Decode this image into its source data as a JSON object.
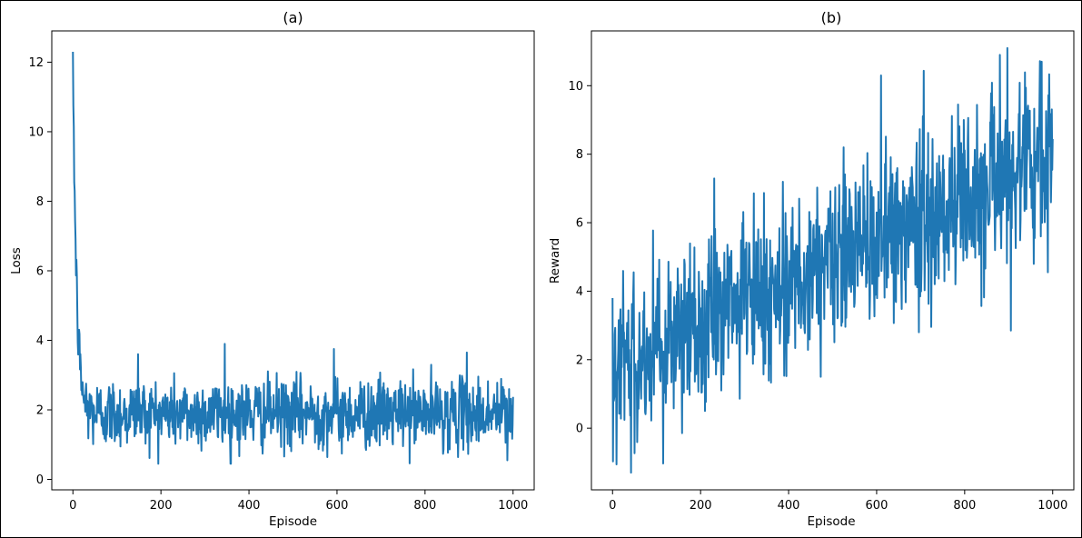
{
  "chart_data": [
    {
      "type": "line",
      "title": "(a)",
      "xlabel": "Episode",
      "ylabel": "Loss",
      "xlim": [
        -48,
        1048
      ],
      "ylim": [
        -0.3,
        12.9
      ],
      "xticks": [
        0,
        200,
        400,
        600,
        800,
        1000
      ],
      "yticks": [
        0,
        2,
        4,
        6,
        8,
        10,
        12
      ],
      "color": "#1f77b4",
      "series": [
        {
          "x_start": 0,
          "x_step": 1,
          "y_model": "1.9 + 10.4*exp(-x/8) + noise(0.5)",
          "x": [
            0,
            1,
            2,
            3,
            4,
            5,
            6,
            8,
            10,
            12,
            15,
            18,
            20,
            25,
            30,
            40,
            50,
            60,
            75,
            100,
            140,
            200,
            250,
            340,
            360,
            400,
            500,
            590,
            650,
            700,
            800,
            900,
            985,
            1000
          ],
          "y": [
            12.3,
            11.0,
            9.0,
            7.3,
            7.0,
            6.2,
            5.6,
            5.0,
            4.4,
            4.8,
            3.6,
            3.4,
            2.9,
            3.0,
            2.7,
            2.2,
            2.1,
            2.0,
            2.4,
            2.0,
            2.2,
            1.9,
            2.0,
            2.3,
            1.5,
            1.8,
            1.9,
            2.4,
            1.8,
            2.0,
            2.1,
            2.0,
            1.9,
            1.8
          ],
          "extremes": {
            "max_late": 3.9,
            "min_late": 0.3
          }
        }
      ]
    },
    {
      "type": "line",
      "title": "(b)",
      "xlabel": "Episode",
      "ylabel": "Reward",
      "xlim": [
        -48,
        1048
      ],
      "ylim": [
        -1.8,
        11.6
      ],
      "xticks": [
        0,
        200,
        400,
        600,
        800,
        1000
      ],
      "yticks": [
        0,
        2,
        4,
        6,
        8,
        10
      ],
      "color": "#1f77b4",
      "series": [
        {
          "x_start": 0,
          "x_step": 1,
          "y_model": "1.8 + 0.0062*x + noise(1.2)",
          "x": [
            0,
            10,
            20,
            40,
            50,
            100,
            150,
            200,
            250,
            300,
            350,
            400,
            450,
            500,
            550,
            600,
            650,
            700,
            750,
            800,
            850,
            900,
            950,
            1000
          ],
          "y": [
            3.8,
            1.2,
            1.8,
            1.5,
            2.0,
            2.4,
            2.9,
            3.1,
            3.4,
            3.6,
            3.9,
            4.3,
            4.6,
            4.9,
            5.2,
            5.5,
            5.9,
            6.1,
            6.4,
            6.8,
            7.0,
            7.3,
            7.6,
            8.0
          ],
          "extremes": {
            "max": 11.1,
            "min": -1.3
          }
        }
      ]
    }
  ]
}
